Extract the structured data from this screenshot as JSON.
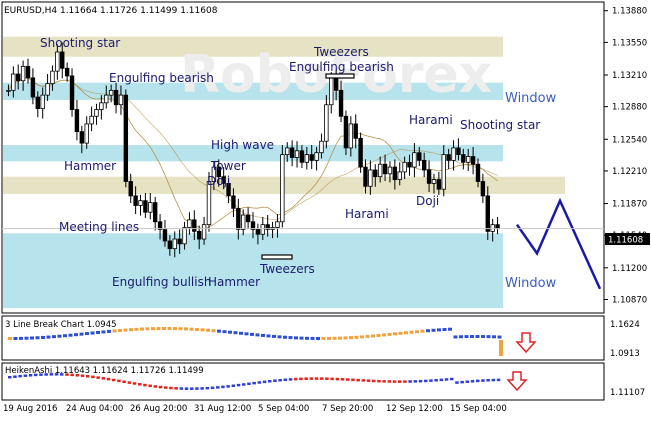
{
  "chart_data": {
    "type": "candlestick",
    "main": {
      "header": "EURUSD,H4  1.11664 1.11726 1.11499 1.11608",
      "price_axis": [
        "1.13880",
        "1.13550",
        "1.13210",
        "1.12880",
        "1.12540",
        "1.12210",
        "1.11870",
        "1.11540",
        "1.11200",
        "1.10870"
      ],
      "ylim": [
        1.1075,
        1.1395
      ],
      "current_price": "1.11608",
      "watermark": "RoboForex",
      "zones": [
        {
          "kind": "beige",
          "y0": 1.1361,
          "y1": 1.134
        },
        {
          "kind": "cyan",
          "y0": 1.1313,
          "y1": 1.1295
        },
        {
          "kind": "cyan",
          "y0": 1.1248,
          "y1": 1.1231
        },
        {
          "kind": "beige",
          "y0": 1.1215,
          "y1": 1.1197
        },
        {
          "kind": "cyan",
          "y0": 1.1156,
          "y1": 1.1078
        }
      ],
      "labels": [
        "Shooting star",
        "Engulfing bearish",
        "Hammer",
        "Meeting lines",
        "Engulfing bullish",
        "Hammer",
        "High wave",
        "Tower",
        "Doji",
        "Tweezers",
        "Tweezers",
        "Engulfing bearish",
        "Harami",
        "Harami",
        "Shooting star",
        "Doji",
        "Window",
        "Window"
      ],
      "closes": [
        1.1305,
        1.1322,
        1.1315,
        1.133,
        1.1318,
        1.1298,
        1.1286,
        1.13,
        1.1312,
        1.1325,
        1.1345,
        1.1328,
        1.132,
        1.1285,
        1.1262,
        1.125,
        1.127,
        1.1278,
        1.1285,
        1.1292,
        1.13,
        1.1305,
        1.129,
        1.13,
        1.121,
        1.1195,
        1.1185,
        1.119,
        1.1178,
        1.1188,
        1.1168,
        1.116,
        1.1148,
        1.114,
        1.115,
        1.1145,
        1.1162,
        1.117,
        1.1158,
        1.115,
        1.1165,
        1.121,
        1.1225,
        1.1215,
        1.1208,
        1.1195,
        1.1182,
        1.116,
        1.1175,
        1.1168,
        1.116,
        1.1155,
        1.1165,
        1.116,
        1.1162,
        1.1168,
        1.1238,
        1.1245,
        1.1235,
        1.1242,
        1.123,
        1.1238,
        1.1232,
        1.124,
        1.1252,
        1.129,
        1.1318,
        1.1305,
        1.1278,
        1.1245,
        1.127,
        1.1255,
        1.1225,
        1.1205,
        1.1222,
        1.1215,
        1.1228,
        1.1218,
        1.1225,
        1.1212,
        1.122,
        1.123,
        1.1225,
        1.124,
        1.1232,
        1.1222,
        1.1208,
        1.1212,
        1.1202,
        1.1238,
        1.1232,
        1.1245,
        1.1238,
        1.123,
        1.1236,
        1.1228,
        1.121,
        1.1195,
        1.1158,
        1.1165,
        1.1161
      ],
      "forecast": [
        [
          0,
          1.1165
        ],
        [
          1,
          1.1135
        ],
        [
          2,
          1.119
        ],
        [
          3,
          1.1098
        ]
      ]
    },
    "indicator1": {
      "label": "3 Line Break Chart 1.0945",
      "axis": [
        "1.1624",
        "1.0913"
      ],
      "arrow": "down"
    },
    "indicator2": {
      "label": "HeikenAshi 1.11643 1.11624 1.11726 1.11499",
      "axis": [
        "1.11107"
      ],
      "arrow": "down"
    },
    "x_ticks": [
      "19 Aug 2016",
      "24 Aug 04:00",
      "26 Aug 20:00",
      "31 Aug 12:00",
      "5 Sep 04:00",
      "7 Sep 20:00",
      "12 Sep 12:00",
      "15 Sep 04:00"
    ],
    "colors": {
      "bull": "#ffffff",
      "bear": "#000000",
      "zone_beige": "#e6e3c4",
      "zone_cyan": "#b7e4ec",
      "forecast": "#1a1aa6",
      "label": "#1b1b6e",
      "window": "#3a5fb8",
      "lb_up": "#2f4fd1",
      "lb_down": "#f0a33c",
      "ha_up": "#2f3fd1",
      "ha_down": "#e2251b",
      "arrow": "#e0252a",
      "ma": "#b08a3c"
    }
  }
}
